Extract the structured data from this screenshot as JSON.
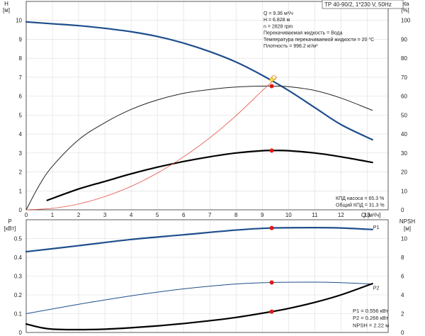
{
  "chart_data": [
    {
      "type": "line",
      "title_box": "TP 40-90/2, 1*230 V, 50Hz",
      "info_lines": [
        "Q = 9.36 м³/ч",
        "H = 6.828 м",
        "n = 2828 rpm",
        "Перекачиваемая жидкость = Вода",
        "Температура перекачиваемой жидкости = 20 °C",
        "Плотность = 998.2 кг/м³"
      ],
      "efficiency_lines": [
        "КПД насоса = 65.3 %",
        "Общий КПД = 31.3 %"
      ],
      "left_axis": {
        "label_top": "H",
        "unit": "[м]",
        "ticks": [
          "0",
          "1",
          "2",
          "3",
          "4",
          "5",
          "6",
          "7",
          "8",
          "9",
          "10"
        ],
        "range": [
          0,
          11
        ]
      },
      "right_axis": {
        "label_top": "eta",
        "unit": "[%]",
        "ticks": [
          "0",
          "10",
          "20",
          "30",
          "40",
          "50",
          "60",
          "70",
          "80",
          "90",
          "100"
        ],
        "range": [
          0,
          110
        ]
      },
      "x_axis": {
        "label": "Q [м³/ч]",
        "ticks": [
          "0",
          "1",
          "2",
          "3",
          "4",
          "5",
          "6",
          "7",
          "8",
          "9",
          "10",
          "11",
          "12",
          "13"
        ],
        "range": [
          0,
          13.8
        ]
      },
      "duty_point": {
        "q": 9.36,
        "h": 6.828,
        "eta_pump": 65.3,
        "eta_total": 31.3
      },
      "series": [
        {
          "key": "H",
          "axis": "left",
          "color": "#1f4e8c",
          "width": 2.2,
          "x": [
            0,
            1,
            2,
            3,
            4,
            5,
            6,
            7,
            8,
            9,
            10,
            11,
            12,
            13.2
          ],
          "y": [
            9.92,
            9.82,
            9.72,
            9.58,
            9.4,
            9.15,
            8.8,
            8.35,
            7.8,
            7.1,
            6.3,
            5.4,
            4.5,
            3.7
          ]
        },
        {
          "key": "eta_pump",
          "axis": "right",
          "color": "#222222",
          "width": 1,
          "x": [
            0,
            0.5,
            1,
            2,
            3,
            4,
            5,
            6,
            7,
            8,
            9,
            9.4,
            10,
            11,
            12,
            13.2
          ],
          "y": [
            0,
            13,
            23,
            37,
            46,
            53,
            58,
            61.5,
            63.5,
            64.8,
            65.3,
            65.3,
            65,
            63,
            59,
            52.5
          ]
        },
        {
          "key": "eta_total",
          "axis": "right",
          "color": "#000000",
          "width": 2.2,
          "x": [
            0.8,
            2,
            3,
            4,
            5,
            6,
            7,
            8,
            9,
            9.4,
            10,
            11,
            12,
            13.2
          ],
          "y": [
            5,
            11,
            15,
            19,
            22.5,
            25.5,
            28,
            30,
            31.2,
            31.3,
            31.2,
            30,
            28,
            25
          ]
        },
        {
          "key": "system",
          "axis": "left",
          "color": "#e25040",
          "width": 0.8,
          "x": [
            0,
            1,
            2,
            3,
            4,
            5,
            6,
            7,
            8,
            9,
            9.55
          ],
          "y": [
            0,
            0.08,
            0.31,
            0.7,
            1.24,
            1.94,
            2.8,
            3.8,
            4.97,
            6.29,
            7.0
          ]
        }
      ]
    },
    {
      "type": "line",
      "left_axis": {
        "label_top": "P",
        "unit": "[кВт]",
        "ticks": [
          "0",
          "0.1",
          "0.2",
          "0.3",
          "0.4",
          "0.5"
        ],
        "range": [
          0,
          0.6
        ]
      },
      "right_axis": {
        "label_top": "NPSH",
        "unit": "[м]",
        "ticks": [
          "0",
          "2",
          "4",
          "6",
          "8",
          "10"
        ],
        "range": [
          0,
          12
        ]
      },
      "info_lines": [
        "P1 = 0.556 кВт",
        "P2 = 0.266 кВт",
        "NPSH = 2.22 м"
      ],
      "series": [
        {
          "name": "P1",
          "axis": "left",
          "color": "#1f4e8c",
          "width": 2.2,
          "x": [
            0,
            2,
            4,
            6,
            8,
            9.36,
            11,
            12,
            13.2
          ],
          "y": [
            0.43,
            0.462,
            0.495,
            0.52,
            0.545,
            0.556,
            0.558,
            0.556,
            0.548
          ]
        },
        {
          "name": "P2",
          "axis": "left",
          "color": "#1f4e8c",
          "width": 1,
          "x": [
            0,
            2,
            4,
            6,
            8,
            9.36,
            11,
            12,
            13.2
          ],
          "y": [
            0.1,
            0.15,
            0.195,
            0.232,
            0.258,
            0.266,
            0.268,
            0.265,
            0.258
          ]
        },
        {
          "key": "NPSH",
          "axis": "right",
          "color": "#000000",
          "width": 2.2,
          "x": [
            0,
            0.5,
            1,
            2,
            3,
            4,
            5,
            6,
            7,
            8,
            9.36,
            10,
            11,
            12,
            13.2
          ],
          "y": [
            0.9,
            0.55,
            0.35,
            0.3,
            0.35,
            0.5,
            0.7,
            0.95,
            1.25,
            1.6,
            2.22,
            2.55,
            3.2,
            4.0,
            5.2
          ]
        }
      ],
      "duty_points": [
        {
          "axis": "left",
          "x": 9.36,
          "y": 0.556
        },
        {
          "axis": "left",
          "x": 9.36,
          "y": 0.266
        },
        {
          "axis": "right",
          "x": 9.36,
          "y": 2.22
        }
      ]
    }
  ]
}
